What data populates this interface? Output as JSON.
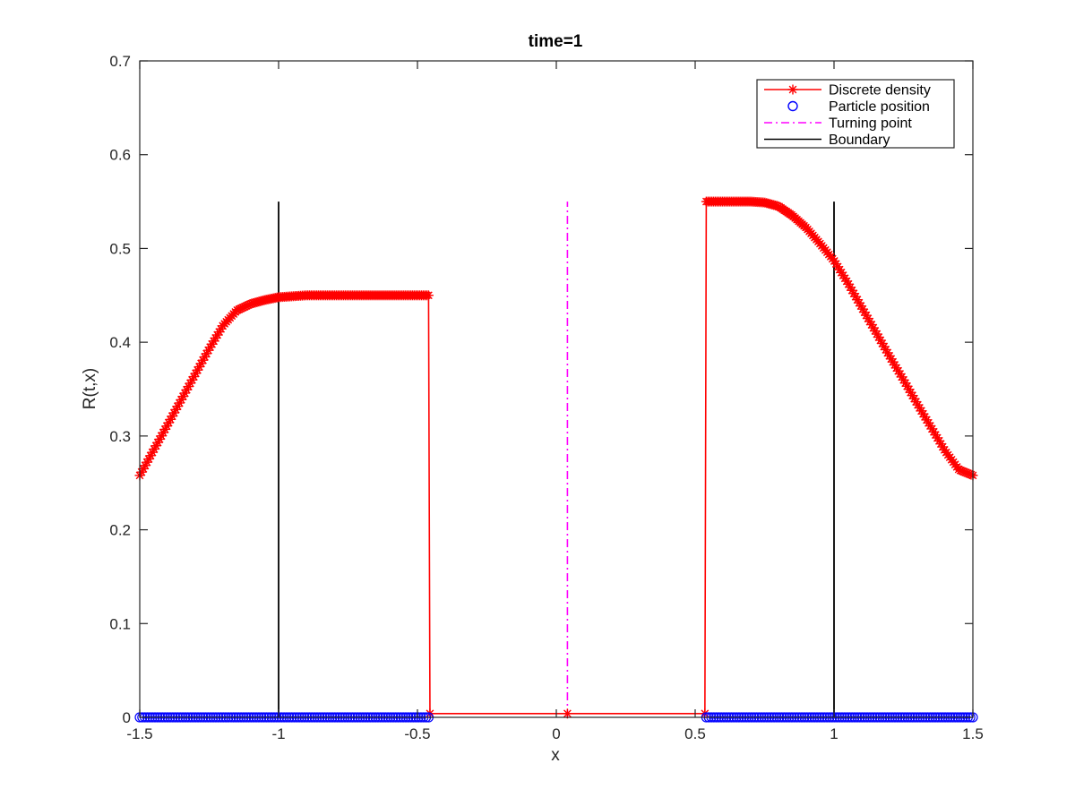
{
  "chart_data": {
    "type": "line",
    "title": "time=1",
    "xlabel": "x",
    "ylabel": "R(t,x)",
    "xlim": [
      -1.5,
      1.5
    ],
    "ylim": [
      0,
      0.7
    ],
    "xticks": [
      "-1.5",
      "-1",
      "-0.5",
      "0",
      "0.5",
      "1",
      "1.5"
    ],
    "yticks": [
      "0",
      "0.1",
      "0.2",
      "0.3",
      "0.4",
      "0.5",
      "0.6",
      "0.7"
    ],
    "grid": false,
    "legend_position": "top-right",
    "series": [
      {
        "name": "Discrete density",
        "color": "#ff0000",
        "marker": "asterisk",
        "x": [
          -1.5,
          -1.45,
          -1.4,
          -1.35,
          -1.3,
          -1.25,
          -1.2,
          -1.15,
          -1.1,
          -1.05,
          -1.0,
          -0.95,
          -0.9,
          -0.8,
          -0.7,
          -0.6,
          -0.5,
          -0.46,
          -0.455,
          0.04,
          0.535,
          0.54,
          0.6,
          0.7,
          0.75,
          0.8,
          0.85,
          0.9,
          0.95,
          1.0,
          1.05,
          1.1,
          1.15,
          1.2,
          1.25,
          1.3,
          1.35,
          1.4,
          1.45,
          1.5
        ],
        "y": [
          0.258,
          0.285,
          0.312,
          0.339,
          0.366,
          0.393,
          0.418,
          0.434,
          0.441,
          0.445,
          0.448,
          0.449,
          0.45,
          0.45,
          0.45,
          0.45,
          0.45,
          0.45,
          0.004,
          0.004,
          0.004,
          0.55,
          0.55,
          0.55,
          0.549,
          0.545,
          0.535,
          0.522,
          0.505,
          0.487,
          0.463,
          0.437,
          0.411,
          0.385,
          0.36,
          0.334,
          0.309,
          0.284,
          0.264,
          0.258
        ]
      },
      {
        "name": "Particle position",
        "color": "#0000ff",
        "marker": "circle",
        "x_ranges": [
          [
            -1.5,
            -0.46
          ],
          [
            0.54,
            1.5
          ]
        ],
        "y": 0
      },
      {
        "name": "Turning point",
        "color": "#ff00ff",
        "style": "dash-dot",
        "x": 0.04,
        "y": [
          0,
          0.55
        ]
      },
      {
        "name": "Boundary",
        "color": "#000000",
        "style": "solid",
        "x": [
          -1,
          1
        ],
        "y": [
          0,
          0.55
        ]
      }
    ]
  }
}
